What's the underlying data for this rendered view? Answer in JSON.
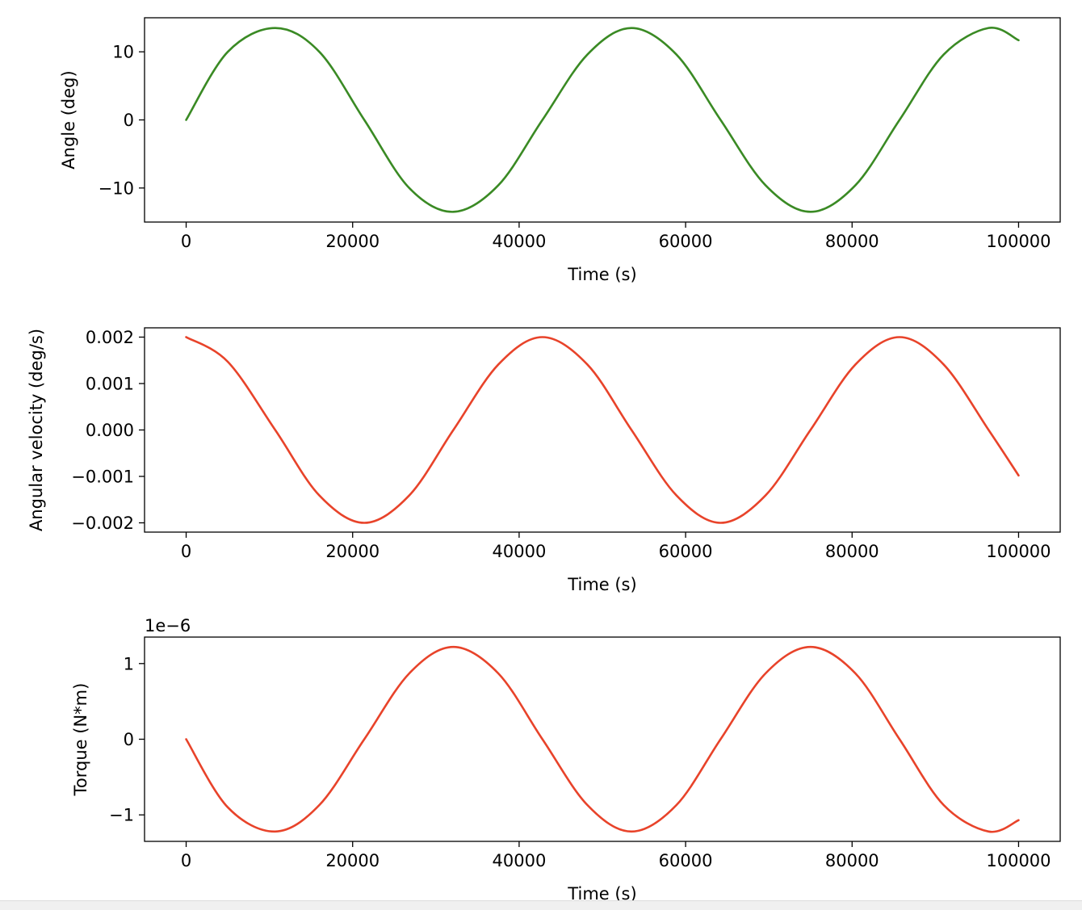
{
  "chart_data": [
    {
      "type": "line",
      "xlabel": "Time (s)",
      "ylabel": "Angle (deg)",
      "xlim": [
        -5000,
        105000
      ],
      "ylim": [
        -15,
        15
      ],
      "xticks": [
        0,
        20000,
        40000,
        60000,
        80000,
        100000
      ],
      "xtick_labels": [
        "0",
        "20000",
        "40000",
        "60000",
        "80000",
        "100000"
      ],
      "yticks": [
        -10,
        0,
        10
      ],
      "ytick_labels": [
        "−10",
        "0",
        "10"
      ],
      "offset_label": "",
      "grid": false,
      "series": [
        {
          "color": "#3a8a24",
          "x": [
            0,
            5000,
            10700,
            16000,
            21400,
            26800,
            32100,
            37500,
            42800,
            48200,
            53500,
            58900,
            64200,
            69600,
            75000,
            80400,
            85700,
            91000,
            96400,
            100000
          ],
          "y": [
            0,
            10.0,
            13.5,
            10.0,
            0,
            -10.0,
            -13.5,
            -9.6,
            0,
            9.6,
            13.5,
            9.6,
            0,
            -9.6,
            -13.5,
            -9.6,
            0,
            9.6,
            13.5,
            11.7
          ]
        }
      ]
    },
    {
      "type": "line",
      "xlabel": "Time (s)",
      "ylabel": "Angular velocity (deg/s)",
      "xlim": [
        -5000,
        105000
      ],
      "ylim": [
        -0.0022,
        0.0022
      ],
      "xticks": [
        0,
        20000,
        40000,
        60000,
        80000,
        100000
      ],
      "xtick_labels": [
        "0",
        "20000",
        "40000",
        "60000",
        "80000",
        "100000"
      ],
      "yticks": [
        -0.002,
        -0.001,
        0,
        0.001,
        0.002
      ],
      "ytick_labels": [
        "−0.002",
        "−0.001",
        "0.000",
        "0.001",
        "0.002"
      ],
      "offset_label": "",
      "grid": false,
      "series": [
        {
          "color": "#e8432a",
          "x": [
            0,
            5000,
            10700,
            16000,
            21400,
            26800,
            32100,
            37500,
            42800,
            48200,
            53500,
            58900,
            64200,
            69600,
            75000,
            80400,
            85700,
            91000,
            96400,
            100000
          ],
          "y": [
            0.002,
            0.00147,
            0,
            -0.00141,
            -0.002,
            -0.00141,
            0,
            0.00141,
            0.002,
            0.00141,
            0,
            -0.00141,
            -0.002,
            -0.00141,
            0,
            0.00141,
            0.002,
            0.00141,
            0,
            -0.00098
          ]
        }
      ]
    },
    {
      "type": "line",
      "xlabel": "Time (s)",
      "ylabel": "Torque (N*m)",
      "xlim": [
        -5000,
        105000
      ],
      "ylim": [
        -1.35,
        1.35
      ],
      "xticks": [
        0,
        20000,
        40000,
        60000,
        80000,
        100000
      ],
      "xtick_labels": [
        "0",
        "20000",
        "40000",
        "60000",
        "80000",
        "100000"
      ],
      "yticks": [
        -1,
        0,
        1
      ],
      "ytick_labels": [
        "−1",
        "0",
        "1"
      ],
      "offset_label": "1e−6",
      "grid": false,
      "series": [
        {
          "color": "#e8432a",
          "x": [
            0,
            5000,
            10700,
            16000,
            21400,
            26800,
            32100,
            37500,
            42800,
            48200,
            53500,
            58900,
            64200,
            69600,
            75000,
            80400,
            85700,
            91000,
            96400,
            100000
          ],
          "y": [
            0,
            -0.9,
            -1.22,
            -0.87,
            0,
            0.87,
            1.22,
            0.87,
            0,
            -0.87,
            -1.22,
            -0.87,
            0,
            0.87,
            1.22,
            0.87,
            0,
            -0.87,
            -1.22,
            -1.07
          ]
        }
      ]
    }
  ]
}
